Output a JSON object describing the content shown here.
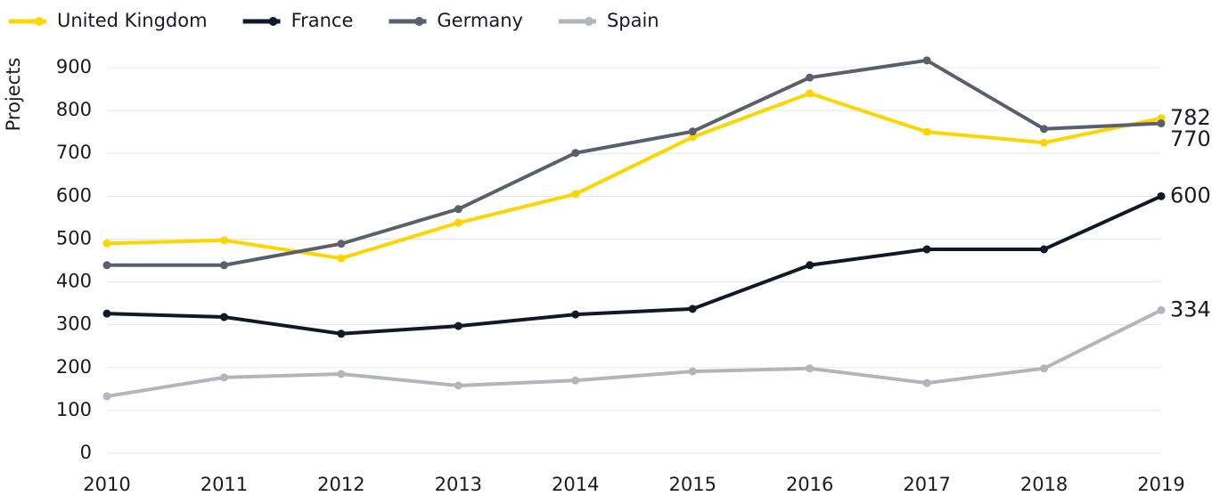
{
  "chart_data": {
    "type": "line",
    "y_label": "Projects",
    "categories": [
      "2010",
      "2011",
      "2012",
      "2013",
      "2014",
      "2015",
      "2016",
      "2017",
      "2018",
      "2019"
    ],
    "series": [
      {
        "name": "United Kingdom",
        "color": "#ffd500",
        "values": [
          490,
          497,
          455,
          538,
          605,
          738,
          840,
          750,
          725,
          782
        ]
      },
      {
        "name": "France",
        "color": "#111827",
        "values": [
          326,
          318,
          279,
          297,
          324,
          337,
          439,
          476,
          476,
          600
        ]
      },
      {
        "name": "Germany",
        "color": "#59606b",
        "values": [
          439,
          439,
          489,
          570,
          701,
          751,
          877,
          917,
          757,
          770
        ]
      },
      {
        "name": "Spain",
        "color": "#b2b5ba",
        "values": [
          133,
          177,
          185,
          158,
          170,
          191,
          198,
          164,
          198,
          334
        ]
      }
    ],
    "ylim": [
      0,
      900
    ],
    "yticks": [
      0,
      100,
      200,
      300,
      400,
      500,
      600,
      700,
      800,
      900
    ],
    "grid": true,
    "legend": "top-left",
    "label_last": true
  }
}
